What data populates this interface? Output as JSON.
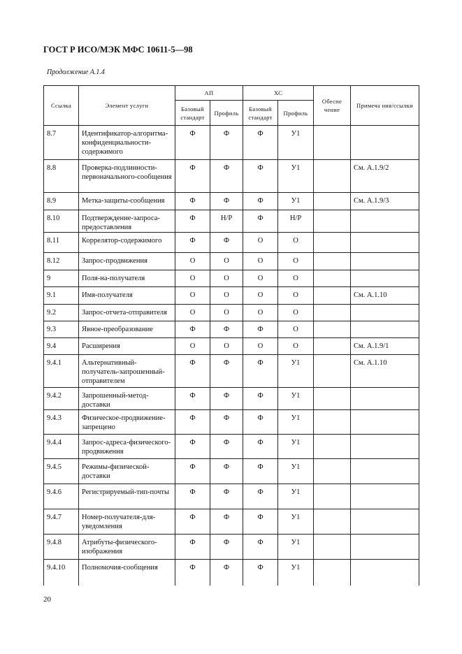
{
  "header": {
    "title": "ГОСТ Р ИСО/МЭК МФС  10611-5—98",
    "subtitle": "Продолжение А.1.4",
    "page_number": "20"
  },
  "table": {
    "columns": {
      "ref": "Ссылка",
      "element": "Элемент услуги",
      "ap": "АП",
      "xc": "ХС",
      "base": "Базовый стандарт",
      "profile": "Профиль",
      "support": "Обеспе чение",
      "notes": "Примеча ния/ссылки"
    },
    "rows": [
      {
        "ref": "8.7",
        "element": "Идентификатор-алгоритма-конфиденциальности-содержимого",
        "ap_base": "Ф",
        "ap_profile": "Ф",
        "xc_base": "Ф",
        "xc_profile": "У1",
        "support": "",
        "notes": ""
      },
      {
        "ref": "8.8",
        "element": "Проверка-подлинности-первоначального-сообщения",
        "ap_base": "Ф",
        "ap_profile": "Ф",
        "xc_base": "Ф",
        "xc_profile": "У1",
        "support": "",
        "notes": "См. А.1.9/2"
      },
      {
        "ref": "8.9",
        "element": "Метка-защиты-сообщения",
        "ap_base": "Ф",
        "ap_profile": "Ф",
        "xc_base": "Ф",
        "xc_profile": "У1",
        "support": "",
        "notes": "См. А.1.9/3"
      },
      {
        "ref": "8.10",
        "element": "Подтверждение-запроса-предоставления",
        "ap_base": "Ф",
        "ap_profile": "Н/Р",
        "xc_base": "Ф",
        "xc_profile": "Н/Р",
        "support": "",
        "notes": ""
      },
      {
        "ref": "8.11",
        "element": "Коррелятор-содержимого",
        "ap_base": "Ф",
        "ap_profile": "Ф",
        "xc_base": "О",
        "xc_profile": "О",
        "support": "",
        "notes": ""
      },
      {
        "ref": "8.12",
        "element": "Запрос-продвижения",
        "ap_base": "О",
        "ap_profile": "О",
        "xc_base": "О",
        "xc_profile": "О",
        "support": "",
        "notes": ""
      },
      {
        "ref": "9",
        "element": "Поля-на-получателя",
        "ap_base": "О",
        "ap_profile": "О",
        "xc_base": "О",
        "xc_profile": "О",
        "support": "",
        "notes": ""
      },
      {
        "ref": "9.1",
        "element": "Имя-получателя",
        "ap_base": "О",
        "ap_profile": "О",
        "xc_base": "О",
        "xc_profile": "О",
        "support": "",
        "notes": "См. А.1.10"
      },
      {
        "ref": "9.2",
        "element": "Запрос-отчета-отправителя",
        "ap_base": "О",
        "ap_profile": "О",
        "xc_base": "О",
        "xc_profile": "О",
        "support": "",
        "notes": ""
      },
      {
        "ref": "9.3",
        "element": "Явное-преобразование",
        "ap_base": "Ф",
        "ap_profile": "Ф",
        "xc_base": "Ф",
        "xc_profile": "О",
        "support": "",
        "notes": ""
      },
      {
        "ref": "9.4",
        "element": "Расширения",
        "ap_base": "О",
        "ap_profile": "О",
        "xc_base": "О",
        "xc_profile": "О",
        "support": "",
        "notes": "См. А.1.9/1"
      },
      {
        "ref": "9.4.1",
        "element": "Альтернативный-получатель-запрошенный-отправителем",
        "ap_base": "Ф",
        "ap_profile": "Ф",
        "xc_base": "Ф",
        "xc_profile": "У1",
        "support": "",
        "notes": "См. А.1.10"
      },
      {
        "ref": "9.4.2",
        "element": "Запрошенный-метод-доставки",
        "ap_base": "Ф",
        "ap_profile": "Ф",
        "xc_base": "Ф",
        "xc_profile": "У1",
        "support": "",
        "notes": ""
      },
      {
        "ref": "9.4.3",
        "element": "Физическое-продвижение-запрещено",
        "ap_base": "Ф",
        "ap_profile": "Ф",
        "xc_base": "Ф",
        "xc_profile": "У1",
        "support": "",
        "notes": ""
      },
      {
        "ref": "9.4.4",
        "element": "Запрос-адреса-физического-продвижения",
        "ap_base": "Ф",
        "ap_profile": "Ф",
        "xc_base": "Ф",
        "xc_profile": "У1",
        "support": "",
        "notes": ""
      },
      {
        "ref": "9.4.5",
        "element": "Режимы-физической-доставки",
        "ap_base": "Ф",
        "ap_profile": "Ф",
        "xc_base": "Ф",
        "xc_profile": "У1",
        "support": "",
        "notes": ""
      },
      {
        "ref": "9.4.6",
        "element": "Регистрируемый-тип-почты",
        "ap_base": "Ф",
        "ap_profile": "Ф",
        "xc_base": "Ф",
        "xc_profile": "У1",
        "support": "",
        "notes": ""
      },
      {
        "ref": "9.4.7",
        "element": "Номер-получателя-для-уведомления",
        "ap_base": "Ф",
        "ap_profile": "Ф",
        "xc_base": "Ф",
        "xc_profile": "У1",
        "support": "",
        "notes": ""
      },
      {
        "ref": "9.4.8",
        "element": "Атрибуты-физического-изображения",
        "ap_base": "Ф",
        "ap_profile": "Ф",
        "xc_base": "Ф",
        "xc_profile": "У1",
        "support": "",
        "notes": ""
      },
      {
        "ref": "9.4.10",
        "element": "Полномочия-сообщения",
        "ap_base": "Ф",
        "ap_profile": "Ф",
        "xc_base": "Ф",
        "xc_profile": "У1",
        "support": "",
        "notes": ""
      }
    ]
  }
}
